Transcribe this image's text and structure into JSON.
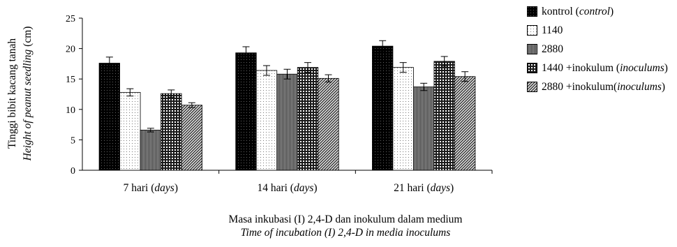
{
  "chart_data": {
    "type": "bar",
    "ylabel_line1": "Tinggi bibit kacang tanah",
    "ylabel_line2": "Height of peanut seedling",
    "ylabel_unit": "(cm)",
    "xlabel_line1": "Masa inkubasi (I) 2,4-D dan inokulum dalam medium",
    "xlabel_line2": "Time of incubation (I) 2,4-D in  media inoculums",
    "ylim": [
      0,
      25
    ],
    "yticks": [
      0,
      5,
      10,
      15,
      20,
      25
    ],
    "grid": false,
    "legend_position": "top-right",
    "categories": [
      {
        "main": "7 hari (",
        "italic": "days",
        "end": ")"
      },
      {
        "main": "14 hari (",
        "italic": "days",
        "end": ")"
      },
      {
        "main": "21 hari (",
        "italic": "days",
        "end": ")"
      }
    ],
    "series": [
      {
        "name_main": "kontrol (",
        "name_italic": "control",
        "name_end": ")",
        "pattern": "black-dots",
        "values": [
          17.6,
          19.3,
          20.4
        ],
        "errors": [
          1.0,
          1.0,
          0.9
        ]
      },
      {
        "name_main": "1140",
        "name_italic": "",
        "name_end": "",
        "pattern": "white-dots",
        "values": [
          12.8,
          16.4,
          16.9
        ],
        "errors": [
          0.6,
          0.8,
          0.8
        ]
      },
      {
        "name_main": "2880",
        "name_italic": "",
        "name_end": "",
        "pattern": "vertical-lines",
        "values": [
          6.6,
          15.8,
          13.7
        ],
        "errors": [
          0.3,
          0.8,
          0.6
        ]
      },
      {
        "name_main": "1440 +inokulum (",
        "name_italic": "inoculums",
        "name_end": ")",
        "pattern": "grid",
        "values": [
          12.6,
          16.9,
          17.9
        ],
        "errors": [
          0.6,
          0.8,
          0.8
        ]
      },
      {
        "name_main": "2880 +inokulum(",
        "name_italic": "inoculums",
        "name_end": ")",
        "pattern": "diagonal",
        "values": [
          10.7,
          15.1,
          15.4
        ],
        "errors": [
          0.4,
          0.6,
          0.8
        ]
      }
    ]
  }
}
